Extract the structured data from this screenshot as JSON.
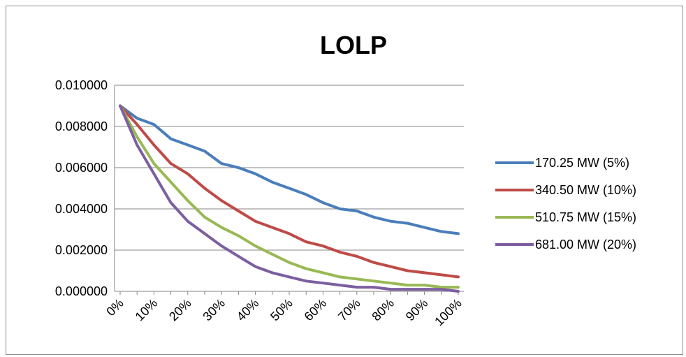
{
  "chart_data": {
    "type": "line",
    "title": "LOLP",
    "xlabel": "",
    "ylabel": "",
    "x": [
      0,
      5,
      10,
      15,
      20,
      25,
      30,
      35,
      40,
      45,
      50,
      55,
      60,
      65,
      70,
      75,
      80,
      85,
      90,
      95,
      100
    ],
    "x_tick_labels": [
      "0%",
      "10%",
      "20%",
      "30%",
      "40%",
      "50%",
      "60%",
      "70%",
      "80%",
      "90%",
      "100%"
    ],
    "x_tick_values": [
      0,
      10,
      20,
      30,
      40,
      50,
      60,
      70,
      80,
      90,
      100
    ],
    "y_tick_labels": [
      "0.000000",
      "0.002000",
      "0.004000",
      "0.006000",
      "0.008000",
      "0.010000"
    ],
    "y_tick_values": [
      0,
      0.002,
      0.004,
      0.006,
      0.008,
      0.01
    ],
    "ylim": [
      0,
      0.01
    ],
    "xlim": [
      0,
      100
    ],
    "grid": "horizontal",
    "legend_position": "right",
    "series": [
      {
        "name": "170.25 MW (5%)",
        "color": "#4a7ebb",
        "values": [
          0.009,
          0.0084,
          0.0081,
          0.0074,
          0.0071,
          0.0068,
          0.0062,
          0.006,
          0.0057,
          0.0053,
          0.005,
          0.0047,
          0.0043,
          0.004,
          0.0039,
          0.0036,
          0.0034,
          0.0033,
          0.0031,
          0.0029,
          0.0028
        ]
      },
      {
        "name": "340.50 MW (10%)",
        "color": "#be4b48",
        "values": [
          0.009,
          0.0081,
          0.0071,
          0.0062,
          0.0057,
          0.005,
          0.0044,
          0.0039,
          0.0034,
          0.0031,
          0.0028,
          0.0024,
          0.0022,
          0.0019,
          0.0017,
          0.0014,
          0.0012,
          0.001,
          0.0009,
          0.0008,
          0.0007
        ]
      },
      {
        "name": "510.75 MW (15%)",
        "color": "#98b954",
        "values": [
          0.009,
          0.0075,
          0.0062,
          0.0053,
          0.0044,
          0.0036,
          0.0031,
          0.0027,
          0.0022,
          0.0018,
          0.0014,
          0.0011,
          0.0009,
          0.0007,
          0.0006,
          0.0005,
          0.0004,
          0.0003,
          0.0003,
          0.0002,
          0.0002
        ]
      },
      {
        "name": "681.00 MW (20%)",
        "color": "#7d5fa0",
        "values": [
          0.009,
          0.0071,
          0.0057,
          0.0043,
          0.0034,
          0.0028,
          0.0022,
          0.0017,
          0.0012,
          0.0009,
          0.0007,
          0.0005,
          0.0004,
          0.0003,
          0.0002,
          0.0002,
          0.0001,
          0.0001,
          0.0001,
          0.0001,
          0.0
        ]
      }
    ]
  }
}
